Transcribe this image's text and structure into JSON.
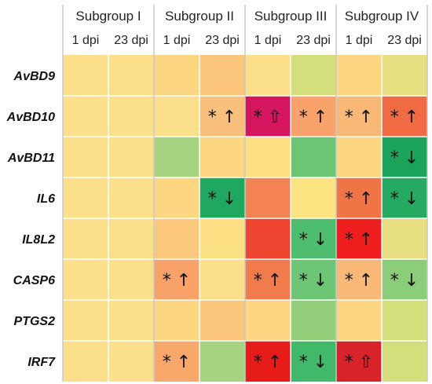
{
  "chart_data": {
    "type": "heatmap",
    "groups": [
      "Subgroup I",
      "Subgroup II",
      "Subgroup III",
      "Subgroup IV"
    ],
    "columns": [
      "1 dpi",
      "23 dpi",
      "1 dpi",
      "23 dpi",
      "1 dpi",
      "23 dpi",
      "1 dpi",
      "23 dpi"
    ],
    "rows": [
      "AvBD9",
      "AvBD10",
      "AvBD11",
      "IL6",
      "IL8L2",
      "CASP6",
      "PTGS2",
      "IRF7"
    ],
    "cells": [
      [
        {
          "color": "#fbdf8a",
          "mark": ""
        },
        {
          "color": "#fbdf8a",
          "mark": ""
        },
        {
          "color": "#fcd681",
          "mark": ""
        },
        {
          "color": "#f9c57a",
          "mark": ""
        },
        {
          "color": "#fbdf8a",
          "mark": ""
        },
        {
          "color": "#d4df7b",
          "mark": ""
        },
        {
          "color": "#fcd681",
          "mark": ""
        },
        {
          "color": "#e8df80",
          "mark": ""
        }
      ],
      [
        {
          "color": "#fbdf8a",
          "mark": ""
        },
        {
          "color": "#fbdf8a",
          "mark": ""
        },
        {
          "color": "#fbdf8a",
          "mark": ""
        },
        {
          "color": "#f8c07c",
          "mark": "* ↑"
        },
        {
          "color": "#d5155d",
          "mark": "* ⇧"
        },
        {
          "color": "#f9a26c",
          "mark": "* ↑"
        },
        {
          "color": "#f9b878",
          "mark": "* ↑"
        },
        {
          "color": "#f06a43",
          "mark": "* ↑"
        }
      ],
      [
        {
          "color": "#fbdf8a",
          "mark": ""
        },
        {
          "color": "#fbdf8a",
          "mark": ""
        },
        {
          "color": "#a6d37f",
          "mark": ""
        },
        {
          "color": "#fcd681",
          "mark": ""
        },
        {
          "color": "#fce083",
          "mark": ""
        },
        {
          "color": "#6cc676",
          "mark": ""
        },
        {
          "color": "#fcd681",
          "mark": ""
        },
        {
          "color": "#1ca45a",
          "mark": "* ↓"
        }
      ],
      [
        {
          "color": "#fbdf8a",
          "mark": ""
        },
        {
          "color": "#fbdf8a",
          "mark": ""
        },
        {
          "color": "#fcd681",
          "mark": ""
        },
        {
          "color": "#20a860",
          "mark": "* ↓"
        },
        {
          "color": "#f38354",
          "mark": ""
        },
        {
          "color": "#fee382",
          "mark": ""
        },
        {
          "color": "#f17446",
          "mark": "* ↑"
        },
        {
          "color": "#26aa61",
          "mark": "* ↓"
        }
      ],
      [
        {
          "color": "#fbdf8a",
          "mark": ""
        },
        {
          "color": "#fbdf8a",
          "mark": ""
        },
        {
          "color": "#fbc87c",
          "mark": ""
        },
        {
          "color": "#fce083",
          "mark": ""
        },
        {
          "color": "#ee4530",
          "mark": ""
        },
        {
          "color": "#4fbd6e",
          "mark": "* ↓"
        },
        {
          "color": "#ee1e1e",
          "mark": "* ↑"
        },
        {
          "color": "#e8df80",
          "mark": ""
        }
      ],
      [
        {
          "color": "#fbdf8a",
          "mark": ""
        },
        {
          "color": "#fbdf8a",
          "mark": ""
        },
        {
          "color": "#f8a269",
          "mark": "* ↑"
        },
        {
          "color": "#fbdf8a",
          "mark": ""
        },
        {
          "color": "#f17b4c",
          "mark": "* ↑"
        },
        {
          "color": "#6cc676",
          "mark": "* ↓"
        },
        {
          "color": "#f9b878",
          "mark": "* ↑"
        },
        {
          "color": "#8ccd7a",
          "mark": "* ↓"
        }
      ],
      [
        {
          "color": "#fbdf8a",
          "mark": ""
        },
        {
          "color": "#fbdf8a",
          "mark": ""
        },
        {
          "color": "#fcd681",
          "mark": ""
        },
        {
          "color": "#f9c57a",
          "mark": ""
        },
        {
          "color": "#fcd681",
          "mark": ""
        },
        {
          "color": "#94cf7c",
          "mark": ""
        },
        {
          "color": "#fcd681",
          "mark": ""
        },
        {
          "color": "#d4df7b",
          "mark": ""
        }
      ],
      [
        {
          "color": "#fbdf8a",
          "mark": ""
        },
        {
          "color": "#fbdf8a",
          "mark": ""
        },
        {
          "color": "#f7a86a",
          "mark": "* ↑"
        },
        {
          "color": "#a6d37f",
          "mark": ""
        },
        {
          "color": "#e81b1b",
          "mark": "* ↑"
        },
        {
          "color": "#42b96a",
          "mark": "* ↓"
        },
        {
          "color": "#d9232a",
          "mark": "* ⇧"
        },
        {
          "color": "#d4df7b",
          "mark": ""
        }
      ]
    ]
  }
}
